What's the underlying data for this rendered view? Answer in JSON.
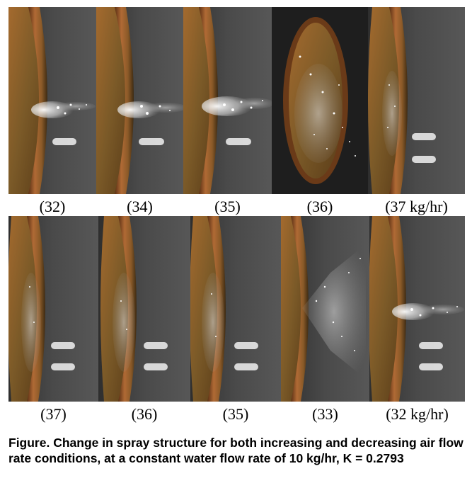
{
  "top_row": {
    "captions": [
      "(32)",
      "(34)",
      "(35)",
      "(36)",
      "(37 kg/hr)"
    ]
  },
  "bottom_row": {
    "captions": [
      "(37)",
      "(36)",
      "(35)",
      "(33)",
      "(32 kg/hr)"
    ]
  },
  "figure_caption": "Figure. Change in spray structure for both increasing and decreasing air flow rate conditions, at a constant water flow rate of 10 kg/hr, K = 0.2793"
}
